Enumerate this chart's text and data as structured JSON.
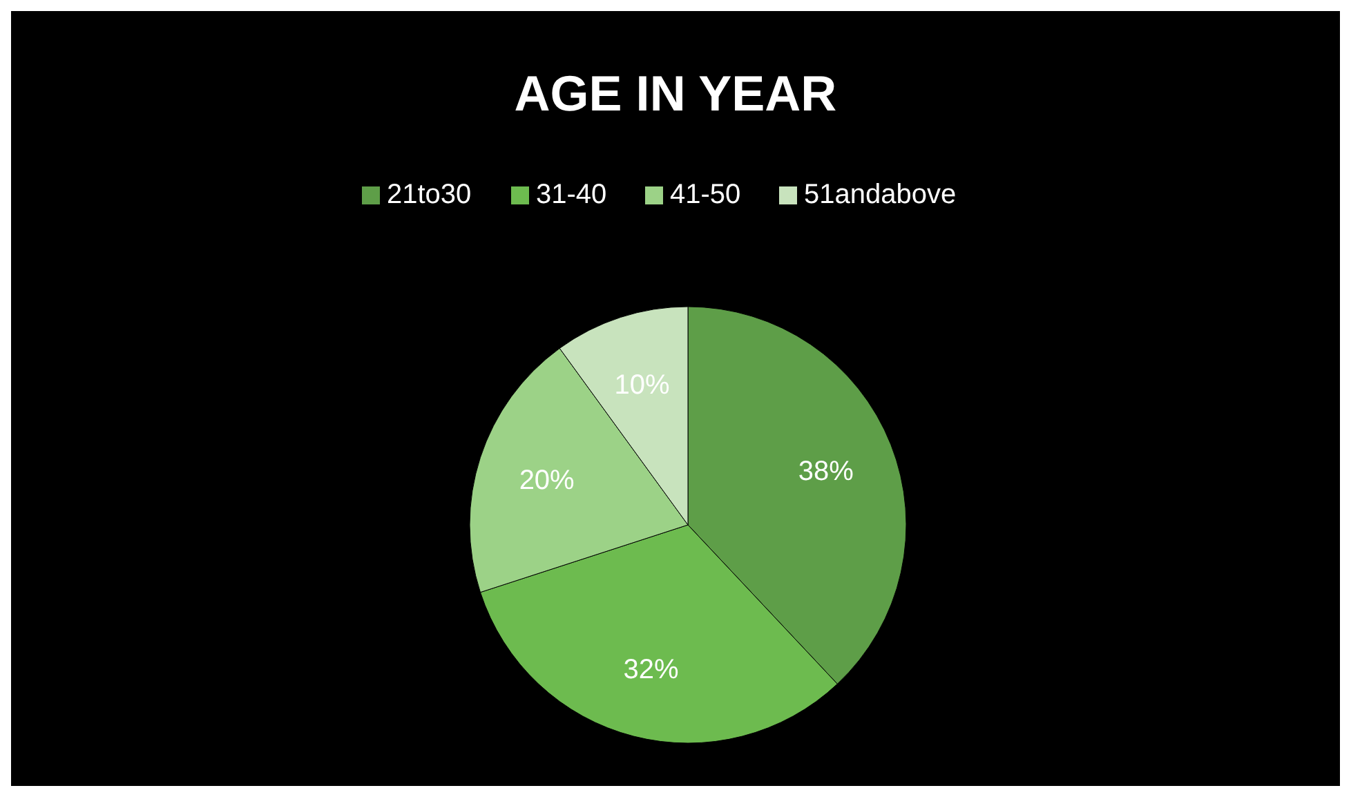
{
  "chart_data": {
    "type": "pie",
    "title": "AGE IN YEAR",
    "categories": [
      "21to30",
      "31-40",
      "41-50",
      "51andabove"
    ],
    "values": [
      38,
      32,
      20,
      10
    ],
    "colors": [
      "#5e9e48",
      "#6dbb4f",
      "#9cd287",
      "#c8e3bd"
    ],
    "legend": "top",
    "value_labels": [
      "38%",
      "32%",
      "20%",
      "10%"
    ]
  }
}
